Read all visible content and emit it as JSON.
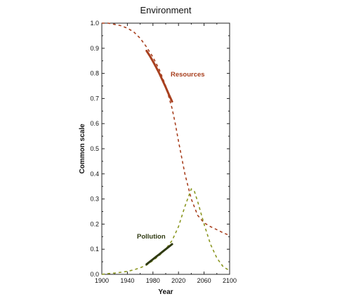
{
  "chart_data": {
    "type": "line",
    "title": "Environment",
    "xlabel": "Year",
    "ylabel": "Common scale",
    "xlim": [
      1900,
      2100
    ],
    "ylim": [
      0,
      1.0
    ],
    "x_ticks": [
      "1900",
      "1940",
      "1980",
      "2020",
      "2060",
      "2100"
    ],
    "y_ticks": [
      "0.0",
      "0.1",
      "0.2",
      "0.3",
      "0.4",
      "0.5",
      "0.6",
      "0.7",
      "0.8",
      "0.9",
      "1.0"
    ],
    "grid": false,
    "series": [
      {
        "name": "Resources",
        "color": "#a8401f",
        "model_line": {
          "style": "dashed",
          "x": [
            1900,
            1910,
            1920,
            1930,
            1940,
            1950,
            1960,
            1970,
            1980,
            1990,
            2000,
            2010,
            2015,
            2020,
            2030,
            2040,
            2050,
            2060,
            2070,
            2080,
            2090,
            2100
          ],
          "y": [
            1.0,
            1.0,
            0.995,
            0.99,
            0.98,
            0.965,
            0.94,
            0.905,
            0.865,
            0.815,
            0.75,
            0.66,
            0.6,
            0.53,
            0.4,
            0.3,
            0.235,
            0.205,
            0.19,
            0.178,
            0.165,
            0.155
          ]
        },
        "observed": {
          "style": "solid",
          "x": [
            1970,
            1975,
            1980,
            1985,
            1990,
            1995,
            2000,
            2005,
            2010
          ],
          "y": [
            0.89,
            0.87,
            0.848,
            0.825,
            0.8,
            0.773,
            0.745,
            0.715,
            0.688
          ]
        }
      },
      {
        "name": "Pollution",
        "color": "#8a9620",
        "model_line": {
          "style": "dashed",
          "x": [
            1900,
            1910,
            1920,
            1930,
            1940,
            1950,
            1960,
            1970,
            1980,
            1990,
            2000,
            2010,
            2020,
            2030,
            2040,
            2045,
            2050,
            2060,
            2070,
            2080,
            2090,
            2100
          ],
          "y": [
            0.0,
            0.003,
            0.005,
            0.008,
            0.012,
            0.018,
            0.026,
            0.037,
            0.055,
            0.075,
            0.1,
            0.135,
            0.19,
            0.27,
            0.34,
            0.33,
            0.29,
            0.2,
            0.12,
            0.065,
            0.03,
            0.015
          ]
        },
        "observed": {
          "style": "solid",
          "color": "#2f3a12",
          "x": [
            1970,
            1975,
            1980,
            1985,
            1990,
            1995,
            2000,
            2005,
            2010
          ],
          "y": [
            0.04,
            0.05,
            0.06,
            0.07,
            0.08,
            0.09,
            0.1,
            0.11,
            0.12
          ]
        }
      }
    ]
  }
}
